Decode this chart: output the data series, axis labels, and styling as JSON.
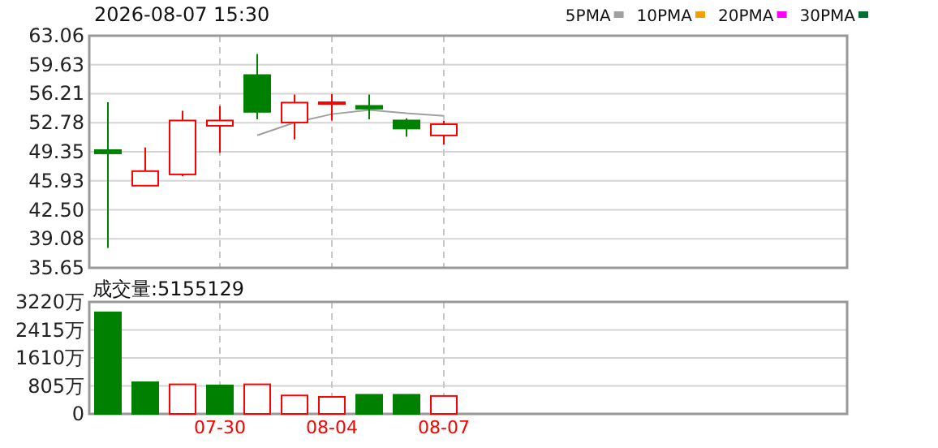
{
  "chart_data": [
    {
      "type": "candlestick",
      "title": "2026-08-07 15:30",
      "categories": [
        null,
        null,
        null,
        null,
        null,
        null,
        null,
        null,
        null,
        null
      ],
      "ohlc": [
        [
          49.55,
          55.2,
          38.0,
          49.17
        ],
        [
          45.35,
          49.86,
          45.35,
          47.07
        ],
        [
          46.68,
          54.2,
          46.49,
          53.05
        ],
        [
          52.42,
          54.77,
          49.23,
          53.05
        ],
        [
          58.41,
          60.9,
          53.19,
          54.07
        ],
        [
          52.81,
          56.12,
          50.82,
          55.16
        ],
        [
          55.1,
          56.17,
          53.05,
          55.2
        ],
        [
          54.77,
          56.12,
          53.19,
          54.45
        ],
        [
          53.05,
          53.3,
          51.14,
          52.1
        ],
        [
          51.28,
          53.0,
          50.19,
          52.61
        ]
      ],
      "colors": [
        "#008000",
        "#ff0000",
        "#ff0000",
        "#ff0000",
        "#008000",
        "#ff0000",
        "#ff0000",
        "#008000",
        "#008000",
        "#ff0000"
      ],
      "series": [
        {
          "name": "5PMA",
          "type": "line",
          "color": "#a0a0a0",
          "values": [
            null,
            null,
            null,
            null,
            51.3,
            52.8,
            53.8,
            54.3,
            53.9,
            53.6
          ]
        },
        {
          "name": "10PMA",
          "type": "line",
          "color": "#f0a000",
          "values": [
            null,
            null,
            null,
            null,
            null,
            null,
            null,
            null,
            null,
            null
          ]
        },
        {
          "name": "20PMA",
          "type": "line",
          "color": "#ff00ff",
          "values": [
            null,
            null,
            null,
            null,
            null,
            null,
            null,
            null,
            null,
            null
          ]
        },
        {
          "name": "30PMA",
          "type": "line",
          "color": "#007030",
          "values": [
            null,
            null,
            null,
            null,
            null,
            null,
            null,
            null,
            null,
            null
          ]
        }
      ],
      "ylim": [
        35.65,
        63.06
      ],
      "yticks": [
        35.65,
        39.08,
        {
          "value": 42.5,
          "label": "42.50"
        },
        45.93,
        49.35,
        52.78,
        56.21,
        59.63,
        63.06
      ],
      "grid": true,
      "legend": "top right",
      "tick_labels": "y"
    },
    {
      "type": "bar",
      "title": "成交量:5155129",
      "categories": [
        null,
        null,
        null,
        "07-30",
        null,
        null,
        "08-04",
        null,
        null,
        "08-07"
      ],
      "values": [
        2920,
        910,
        850,
        820,
        850,
        530,
        490,
        550,
        550,
        516
      ],
      "colors": [
        "#008000",
        "#008000",
        "#ff0000",
        "#008000",
        "#ff0000",
        "#ff0000",
        "#ff0000",
        "#008000",
        "#008000",
        "#ff0000"
      ],
      "ylim": [
        0,
        3220
      ],
      "yticks": [
        0,
        {
          "value": 805,
          "label": "805万"
        },
        {
          "value": 1610,
          "label": "1610万"
        },
        {
          "value": 2415,
          "label": "2415万"
        },
        {
          "value": 3220,
          "label": "3220万"
        }
      ],
      "grid": true
    }
  ]
}
